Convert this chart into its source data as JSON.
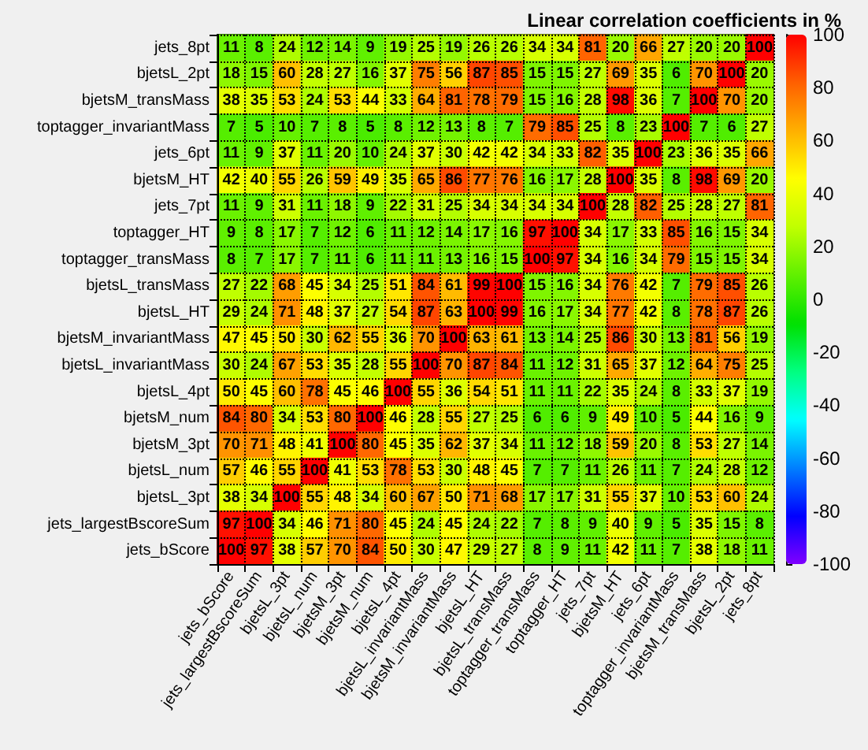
{
  "chart_data": {
    "type": "heatmap",
    "title": "Linear correlation coefficients in %",
    "categories": [
      "jets_bScore",
      "jets_largestBscoreSum",
      "bjetsL_3pt",
      "bjetsL_num",
      "bjetsM_3pt",
      "bjetsM_num",
      "bjetsL_4pt",
      "bjetsL_invariantMass",
      "bjetsM_invariantMass",
      "bjetsL_HT",
      "bjetsL_transMass",
      "toptagger_transMass",
      "toptagger_HT",
      "jets_7pt",
      "bjetsM_HT",
      "jets_6pt",
      "toptagger_invariantMass",
      "bjetsM_transMass",
      "bjetsL_2pt",
      "jets_8pt"
    ],
    "y_categories": [
      "jets_8pt",
      "bjetsL_2pt",
      "bjetsM_transMass",
      "toptagger_invariantMass",
      "jets_6pt",
      "bjetsM_HT",
      "jets_7pt",
      "toptagger_HT",
      "toptagger_transMass",
      "bjetsL_transMass",
      "bjetsL_HT",
      "bjetsM_invariantMass",
      "bjetsL_invariantMass",
      "bjetsL_4pt",
      "bjetsM_num",
      "bjetsM_3pt",
      "bjetsL_num",
      "bjetsL_3pt",
      "jets_largestBscoreSum",
      "jets_bScore"
    ],
    "cells": [
      [
        11,
        8,
        24,
        12,
        14,
        9,
        19,
        25,
        19,
        26,
        26,
        34,
        34,
        81,
        20,
        66,
        27,
        20,
        20,
        100
      ],
      [
        18,
        15,
        60,
        28,
        27,
        16,
        37,
        75,
        56,
        87,
        85,
        15,
        15,
        27,
        69,
        35,
        6,
        70,
        100,
        20
      ],
      [
        38,
        35,
        53,
        24,
        53,
        44,
        33,
        64,
        81,
        78,
        79,
        15,
        16,
        28,
        98,
        36,
        7,
        100,
        70,
        20
      ],
      [
        7,
        5,
        10,
        7,
        8,
        5,
        8,
        12,
        13,
        8,
        7,
        79,
        85,
        25,
        8,
        23,
        100,
        7,
        6,
        27
      ],
      [
        11,
        9,
        37,
        11,
        20,
        10,
        24,
        37,
        30,
        42,
        42,
        34,
        33,
        82,
        35,
        100,
        23,
        36,
        35,
        66
      ],
      [
        42,
        40,
        55,
        26,
        59,
        49,
        35,
        65,
        86,
        77,
        76,
        16,
        17,
        28,
        100,
        35,
        8,
        98,
        69,
        20
      ],
      [
        11,
        9,
        31,
        11,
        18,
        9,
        22,
        31,
        25,
        34,
        34,
        34,
        34,
        100,
        28,
        82,
        25,
        28,
        27,
        81
      ],
      [
        9,
        8,
        17,
        7,
        12,
        6,
        11,
        12,
        14,
        17,
        16,
        97,
        100,
        34,
        17,
        33,
        85,
        16,
        15,
        34
      ],
      [
        8,
        7,
        17,
        7,
        11,
        6,
        11,
        11,
        13,
        16,
        15,
        100,
        97,
        34,
        16,
        34,
        79,
        15,
        15,
        34
      ],
      [
        27,
        22,
        68,
        45,
        34,
        25,
        51,
        84,
        61,
        99,
        100,
        15,
        16,
        34,
        76,
        42,
        7,
        79,
        85,
        26
      ],
      [
        29,
        24,
        71,
        48,
        37,
        27,
        54,
        87,
        63,
        100,
        99,
        16,
        17,
        34,
        77,
        42,
        8,
        78,
        87,
        26
      ],
      [
        47,
        45,
        50,
        30,
        62,
        55,
        36,
        70,
        100,
        63,
        61,
        13,
        14,
        25,
        86,
        30,
        13,
        81,
        56,
        19
      ],
      [
        30,
        24,
        67,
        53,
        35,
        28,
        55,
        100,
        70,
        87,
        84,
        11,
        12,
        31,
        65,
        37,
        12,
        64,
        75,
        25
      ],
      [
        50,
        45,
        60,
        78,
        45,
        46,
        100,
        55,
        36,
        54,
        51,
        11,
        11,
        22,
        35,
        24,
        8,
        33,
        37,
        19
      ],
      [
        84,
        80,
        34,
        53,
        80,
        100,
        46,
        28,
        55,
        27,
        25,
        6,
        6,
        9,
        49,
        10,
        5,
        44,
        16,
        9
      ],
      [
        70,
        71,
        48,
        41,
        100,
        80,
        45,
        35,
        62,
        37,
        34,
        11,
        12,
        18,
        59,
        20,
        8,
        53,
        27,
        14
      ],
      [
        57,
        46,
        55,
        100,
        41,
        53,
        78,
        53,
        30,
        48,
        45,
        7,
        7,
        11,
        26,
        11,
        7,
        24,
        28,
        12
      ],
      [
        38,
        34,
        100,
        55,
        48,
        34,
        60,
        67,
        50,
        71,
        68,
        17,
        17,
        31,
        55,
        37,
        10,
        53,
        60,
        24
      ],
      [
        97,
        100,
        34,
        46,
        71,
        80,
        45,
        24,
        45,
        24,
        22,
        7,
        8,
        9,
        40,
        9,
        5,
        35,
        15,
        8
      ],
      [
        100,
        97,
        38,
        57,
        70,
        84,
        50,
        30,
        47,
        29,
        27,
        8,
        9,
        11,
        42,
        11,
        7,
        38,
        18,
        11
      ]
    ],
    "clim": [
      -100,
      100
    ],
    "cticks": [
      -100,
      -80,
      -60,
      -40,
      -20,
      0,
      20,
      40,
      60,
      80,
      100
    ],
    "data_labels": true,
    "grid": true
  }
}
